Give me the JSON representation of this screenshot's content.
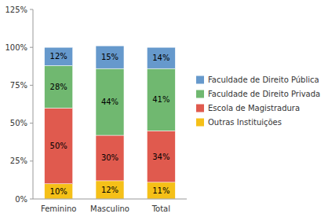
{
  "chart_data": {
    "type": "bar",
    "stacked": true,
    "data_labels": true,
    "grid": false,
    "legend": "right",
    "categories": [
      "Feminino",
      "Masculino",
      "Total"
    ],
    "series": [
      {
        "name": "Outras Instituições",
        "color": "#F5C018",
        "values": [
          10,
          12,
          11
        ],
        "value_labels": [
          "10%",
          "12%",
          "11%"
        ]
      },
      {
        "name": "Escola de Magistradura",
        "color": "#E05A4E",
        "values": [
          50,
          30,
          34
        ],
        "value_labels": [
          "50%",
          "30%",
          "34%"
        ]
      },
      {
        "name": "Faculdade de Direito Privada",
        "color": "#70B870",
        "values": [
          28,
          44,
          41
        ],
        "value_labels": [
          "28%",
          "44%",
          "41%"
        ]
      },
      {
        "name": "Faculdade de Direito Pública",
        "color": "#6699CC",
        "values": [
          12,
          15,
          14
        ],
        "value_labels": [
          "12%",
          "15%",
          "14%"
        ]
      }
    ],
    "ylim": [
      0,
      125
    ],
    "yticks": [
      {
        "value": 0,
        "label": "0%"
      },
      {
        "value": 25,
        "label": "25%"
      },
      {
        "value": 50,
        "label": "50%"
      },
      {
        "value": 75,
        "label": "75%"
      },
      {
        "value": 100,
        "label": "100%"
      },
      {
        "value": 125,
        "label": "125%"
      }
    ]
  }
}
